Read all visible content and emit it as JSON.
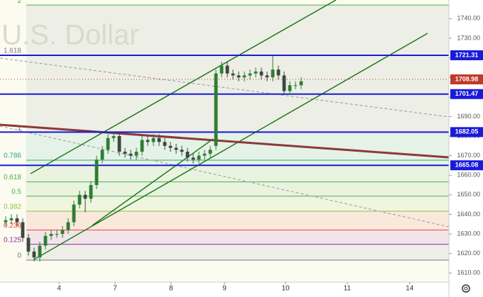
{
  "chart_data": {
    "type": "candlestick",
    "watermark": "/ U.S. Dollar",
    "x": [
      1,
      2,
      3,
      4,
      5,
      6,
      7,
      8,
      9,
      10,
      11,
      12,
      13,
      14,
      15,
      16,
      17,
      18,
      19,
      20,
      21,
      22,
      23,
      24,
      25,
      26,
      27,
      28,
      29,
      30,
      31,
      32,
      33,
      34,
      35,
      36,
      37,
      38,
      39,
      40,
      41,
      42,
      43,
      44,
      45,
      46,
      47,
      48,
      49,
      50,
      51,
      52,
      53
    ],
    "open": [
      1636,
      1637,
      1638,
      1636,
      1628,
      1621,
      1618,
      1624,
      1629,
      1630,
      1630,
      1632,
      1636,
      1645,
      1650,
      1648,
      1655,
      1668,
      1673,
      1679,
      1680,
      1672,
      1671,
      1670,
      1672,
      1678,
      1677,
      1679,
      1677,
      1675,
      1674,
      1673,
      1672,
      1669,
      1668,
      1670,
      1671,
      1675,
      1712,
      1716,
      1712,
      1711,
      1710,
      1711,
      1712,
      1713,
      1711,
      1710,
      1714,
      1711,
      1703,
      1706,
      1706
    ],
    "high": [
      1639,
      1640,
      1640,
      1638,
      1630,
      1623,
      1626,
      1631,
      1632,
      1632,
      1634,
      1638,
      1647,
      1652,
      1652,
      1657,
      1670,
      1675,
      1681,
      1682,
      1682,
      1674,
      1673,
      1674,
      1680,
      1680,
      1681,
      1681,
      1679,
      1677,
      1676,
      1675,
      1674,
      1671,
      1672,
      1673,
      1675,
      1714,
      1718,
      1718,
      1714,
      1713,
      1713,
      1714,
      1715,
      1715,
      1713,
      1721,
      1716,
      1713,
      1708,
      1708,
      1710
    ],
    "low": [
      1634,
      1635,
      1634,
      1626,
      1619,
      1616,
      1616,
      1622,
      1627,
      1628,
      1628,
      1630,
      1634,
      1643,
      1641,
      1646,
      1653,
      1666,
      1671,
      1677,
      1670,
      1669,
      1668,
      1668,
      1670,
      1675,
      1675,
      1675,
      1673,
      1672,
      1671,
      1670,
      1667,
      1666,
      1666,
      1668,
      1669,
      1673,
      1710,
      1710,
      1709,
      1708,
      1708,
      1709,
      1710,
      1709,
      1708,
      1708,
      1709,
      1701,
      1701,
      1704,
      1704
    ],
    "close": [
      1637,
      1638,
      1636,
      1628,
      1621,
      1618,
      1624,
      1629,
      1630,
      1630,
      1632,
      1636,
      1645,
      1650,
      1648,
      1655,
      1668,
      1673,
      1679,
      1680,
      1672,
      1671,
      1670,
      1672,
      1678,
      1677,
      1679,
      1677,
      1675,
      1674,
      1673,
      1672,
      1669,
      1668,
      1670,
      1671,
      1673,
      1712,
      1716,
      1712,
      1711,
      1710,
      1711,
      1712,
      1713,
      1711,
      1710,
      1714,
      1711,
      1703,
      1706,
      1706,
      1708
    ],
    "up_color": "#2e7d32",
    "down_color": "#3a4a3f",
    "xlim": [
      0,
      79
    ],
    "xticks": [
      {
        "value": 10.4,
        "label": "4"
      },
      {
        "value": 20.25,
        "label": "7"
      },
      {
        "value": 30.1,
        "label": "8"
      },
      {
        "value": 39.5,
        "label": "9"
      },
      {
        "value": 50.25,
        "label": "10"
      },
      {
        "value": 61.1,
        "label": "11"
      },
      {
        "value": 72.1,
        "label": "14"
      }
    ],
    "ylim": [
      1605.38,
      1749.55
    ],
    "yticks": [
      {
        "value": 1610,
        "label": "1610.00"
      },
      {
        "value": 1620,
        "label": "1620.00"
      },
      {
        "value": 1630,
        "label": "1630.00"
      },
      {
        "value": 1640,
        "label": "1640.00"
      },
      {
        "value": 1650,
        "label": "1650.00"
      },
      {
        "value": 1660,
        "label": "1660.00"
      },
      {
        "value": 1670,
        "label": "1670.00"
      },
      {
        "value": 1680,
        "label": "1680.00"
      },
      {
        "value": 1690,
        "label": "1690.00"
      },
      {
        "value": 1700,
        "label": "1700.00"
      },
      {
        "value": 1710,
        "label": "1710.00"
      },
      {
        "value": 1720,
        "label": "1720.00"
      },
      {
        "value": 1730,
        "label": "1730.00"
      },
      {
        "value": 1740,
        "label": "1740.00"
      }
    ],
    "fib_levels": [
      {
        "label": "2",
        "value": 1746.97,
        "color": "#4caf50"
      },
      {
        "label": "1.618",
        "value": 1721.31,
        "color": "#787b86"
      },
      {
        "label": "1",
        "value": 1681.9,
        "color": "#787b86"
      },
      {
        "label": "0.786",
        "value": 1667.7,
        "color": "#26a69a"
      },
      {
        "label": "0.618",
        "value": 1656.6,
        "color": "#4caf50"
      },
      {
        "label": "0.5",
        "value": 1649.3,
        "color": "#4caf50"
      },
      {
        "label": "0.382",
        "value": 1641.6,
        "color": "#8bc34a"
      },
      {
        "label": "0.236",
        "value": 1632,
        "color": "#f44336"
      },
      {
        "label": "0.125",
        "value": 1624.7,
        "color": "#9c27b0"
      },
      {
        "label": "0",
        "value": 1616.6,
        "color": "#787b86"
      }
    ],
    "levels": [
      {
        "label": "1721.31",
        "value": 1721.31
      },
      {
        "label": "1701.47",
        "value": 1701.47
      },
      {
        "label": "1682.05",
        "value": 1682.05
      },
      {
        "label": "1665.08",
        "value": 1665.08
      }
    ],
    "level_color": "#1a1adb",
    "last_price": {
      "label": "1708.98",
      "value": 1708.98,
      "color": "#c0392b"
    }
  }
}
